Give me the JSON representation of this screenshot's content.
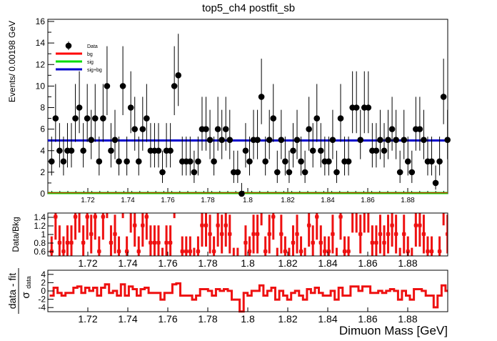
{
  "title": "top5_ch4   postfit_sb",
  "colors": {
    "data": "#000000",
    "bg": "#ff0000",
    "sig": "#00dd00",
    "sigbg": "#0000cc",
    "ratio": "#ee1111",
    "pull": "#ee1111"
  },
  "chart_data": [
    {
      "type": "scatter",
      "panel": "main",
      "title": "top5_ch4   postfit_sb",
      "xlabel": "",
      "ylabel": "Events/ 0.00198 GeV",
      "xlim": [
        1.7,
        1.9
      ],
      "ylim": [
        0,
        16.2
      ],
      "yticks": [
        0,
        2,
        4,
        6,
        8,
        10,
        12,
        14,
        16
      ],
      "xticks": [
        1.72,
        1.74,
        1.76,
        1.78,
        1.8,
        1.82,
        1.84,
        1.86,
        1.88
      ],
      "legend": {
        "placement": "top-left",
        "entries": [
          "Data",
          "bg",
          "sig",
          "sig+bg"
        ]
      },
      "series": [
        {
          "name": "Data",
          "kind": "points-with-errors",
          "x_start": 1.7009,
          "bin_width": 0.00198,
          "values": [
            3,
            7,
            4,
            3,
            4,
            4,
            7,
            8,
            4,
            7,
            5,
            7,
            3,
            7,
            10,
            4,
            5,
            3,
            10,
            3,
            8,
            6,
            3,
            6,
            7,
            4,
            4,
            4,
            2,
            4,
            4,
            10,
            11,
            3,
            3,
            3,
            2,
            3,
            6,
            6,
            5,
            3,
            6,
            5,
            6,
            5,
            2,
            2,
            0,
            4,
            3,
            5,
            5,
            9,
            3,
            5,
            7,
            2,
            5,
            3,
            2,
            4,
            5,
            3,
            2,
            6,
            4,
            7,
            4,
            3,
            3,
            5,
            2,
            7,
            3,
            3,
            8,
            8,
            5,
            8,
            8,
            4,
            4,
            5,
            4,
            5,
            6,
            5,
            2,
            5,
            3,
            2,
            6,
            6,
            5,
            3,
            3,
            1,
            3,
            9,
            5,
            3,
            9,
            4,
            8,
            7,
            5
          ]
        },
        {
          "name": "bg",
          "kind": "line",
          "value": 0.02
        },
        {
          "name": "sig",
          "kind": "line",
          "value": 0.0
        },
        {
          "name": "sig+bg",
          "kind": "line",
          "value": 4.95
        }
      ]
    },
    {
      "type": "scatter",
      "panel": "ratio",
      "ylabel": "Data/Bkg",
      "ylim": [
        0.5,
        1.5
      ],
      "yticks": [
        0.6,
        0.8,
        1,
        1.2,
        1.4
      ],
      "xticks": [
        1.72,
        1.74,
        1.76,
        1.78,
        1.8,
        1.82,
        1.84,
        1.86,
        1.88
      ],
      "xlim": [
        1.7,
        1.9
      ]
    },
    {
      "type": "line",
      "panel": "pull",
      "ylabel": "data - fit",
      "ylabel_sub": "σ",
      "ylabel_subsub": "data",
      "xlabel": "Dimuon Mass [GeV]",
      "ylim": [
        -5,
        5
      ],
      "yticks": [
        -4,
        -2,
        0,
        2,
        4
      ],
      "xticks": [
        1.72,
        1.74,
        1.76,
        1.78,
        1.8,
        1.82,
        1.84,
        1.86,
        1.88
      ],
      "xlim": [
        1.7,
        1.9
      ]
    }
  ]
}
